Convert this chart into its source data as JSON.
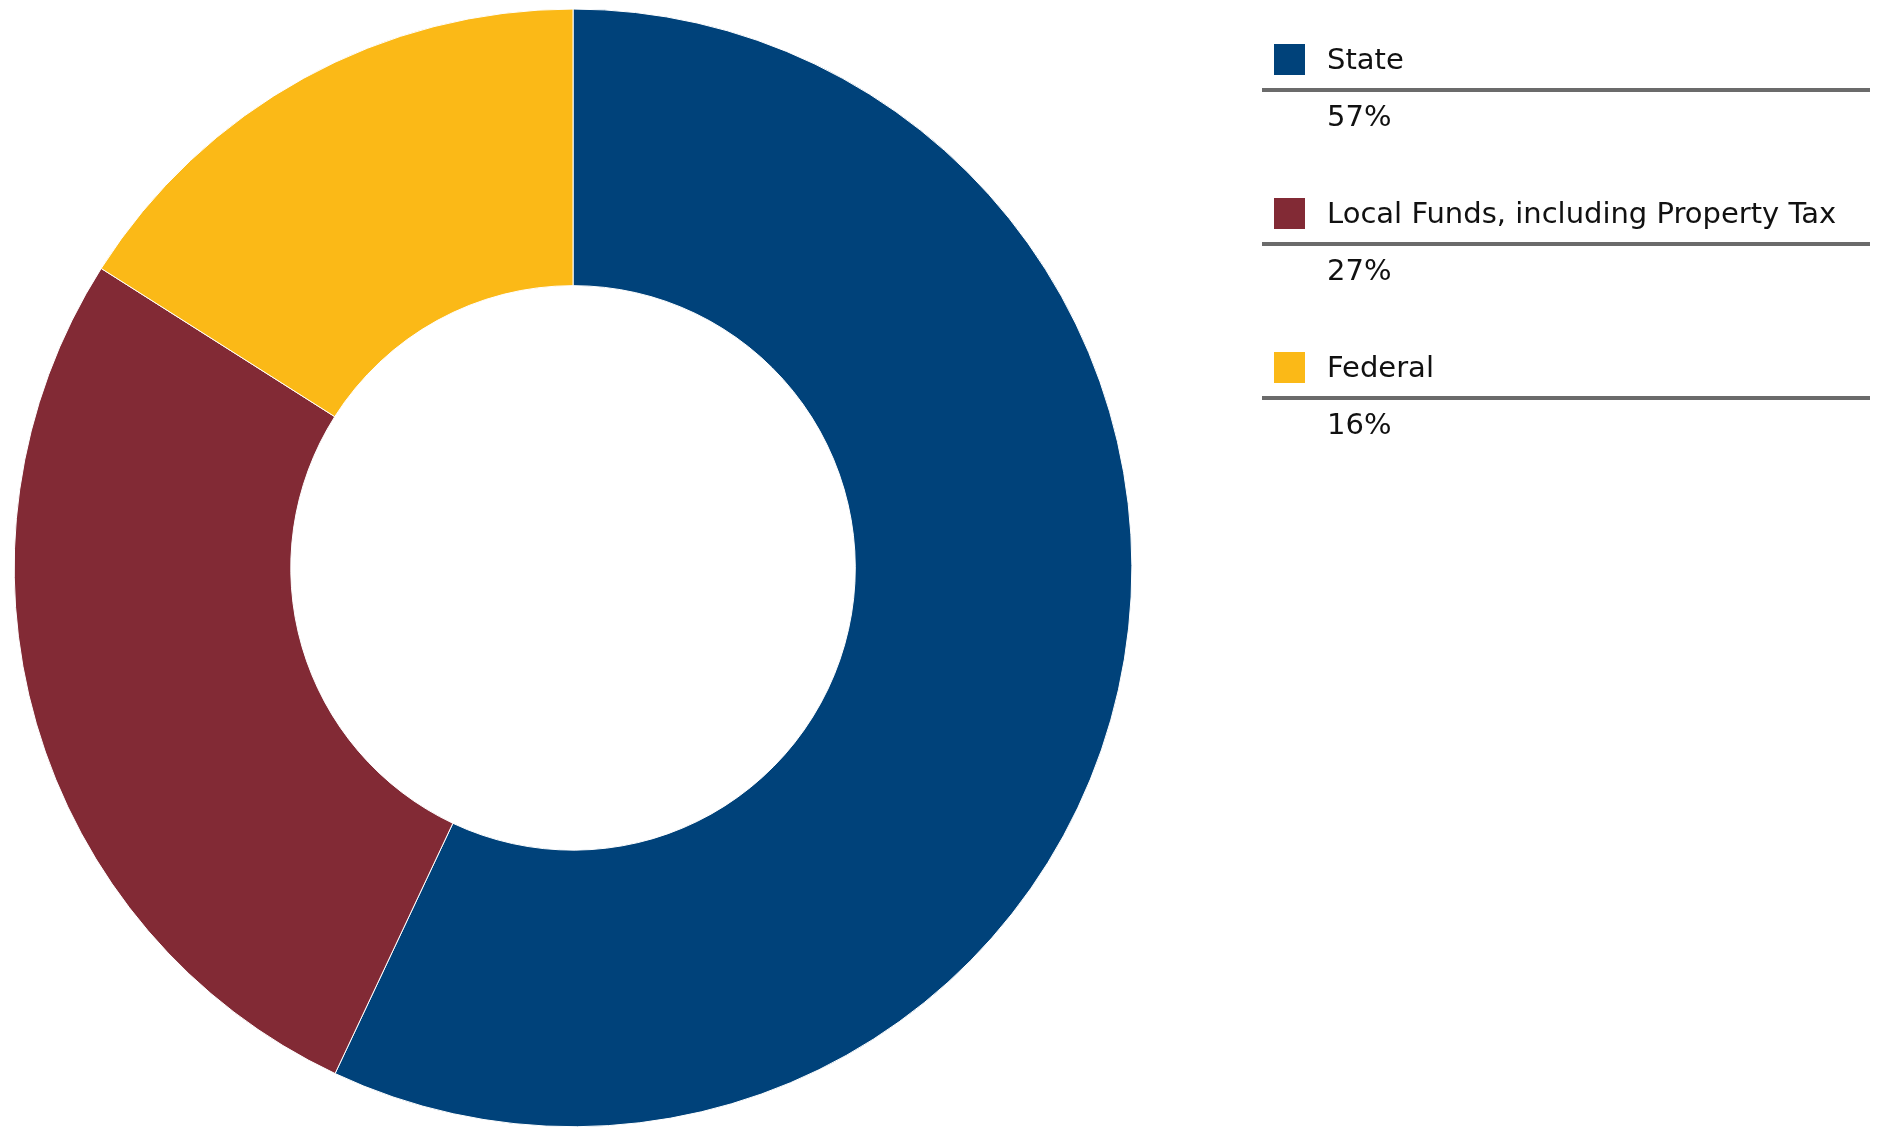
{
  "chart_data": {
    "type": "donut",
    "categories": [
      "State",
      "Local Funds, including Property Tax",
      "Federal"
    ],
    "values": [
      57,
      27,
      16
    ],
    "colors": [
      "#00427a",
      "#822a35",
      "#fbb917"
    ],
    "value_labels": [
      "57%",
      "27%",
      "16%"
    ],
    "legend": "right"
  }
}
